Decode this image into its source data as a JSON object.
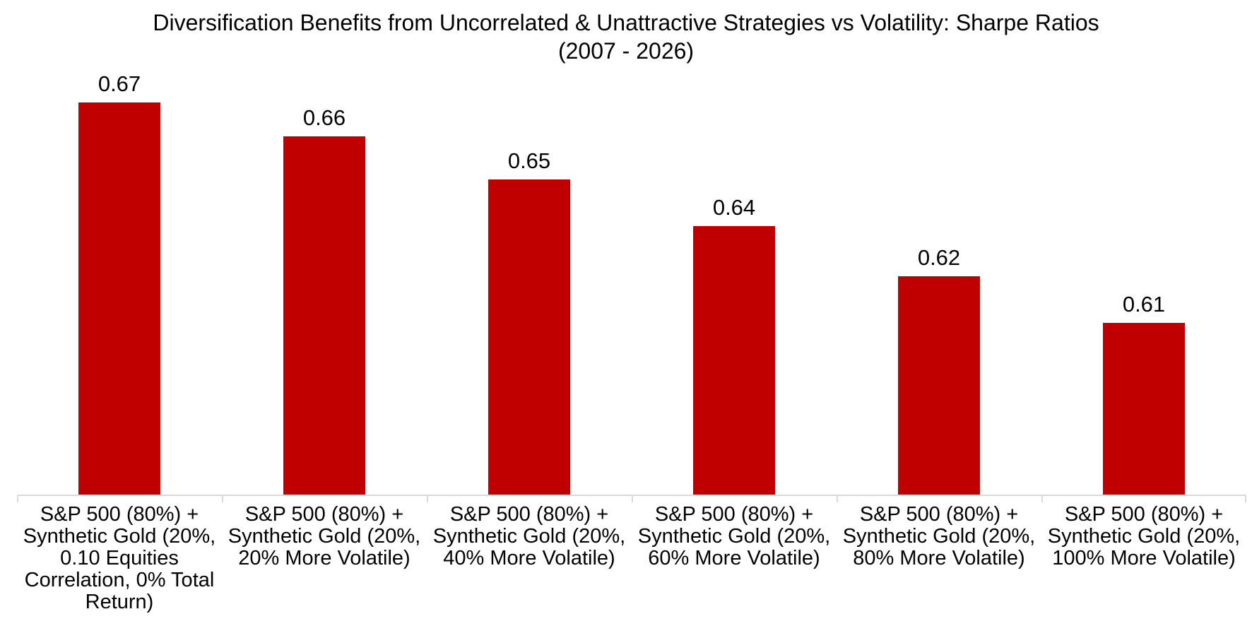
{
  "chart_data": {
    "type": "bar",
    "title": "Diversification Benefits from Uncorrelated & Unattractive Strategies vs Volatility: Sharpe Ratios",
    "subtitle": "(2007 - 2026)",
    "categories": [
      "S&P 500 (80%) + Synthetic Gold (20%, 0.10 Equities Correlation, 0% Total Return)",
      "S&P 500 (80%) + Synthetic Gold (20%, 20% More Volatile)",
      "S&P 500 (80%) + Synthetic Gold (20%, 40% More Volatile)",
      "S&P 500 (80%) + Synthetic Gold (20%, 60% More Volatile)",
      "S&P 500 (80%) + Synthetic Gold (20%, 80% More Volatile)",
      "S&P 500 (80%) + Synthetic Gold (20%, 100% More Volatile)"
    ],
    "values": [
      0.67,
      0.66,
      0.65,
      0.64,
      0.62,
      0.61
    ],
    "value_labels": [
      "0.67",
      "0.66",
      "0.65",
      "0.64",
      "0.62",
      "0.61"
    ],
    "values_precise_estimated": [
      0.672,
      0.662,
      0.65,
      0.637,
      0.623,
      0.61
    ],
    "ylim": [
      0.562,
      0.68
    ],
    "xlabel": "",
    "ylabel": "",
    "grid": false,
    "legend": "none",
    "data_labels": "above bars",
    "bar_color": "#C00000",
    "axis_line_color": "#D9D9D9",
    "text_color": "#000000",
    "background_color": "#FFFFFF"
  }
}
